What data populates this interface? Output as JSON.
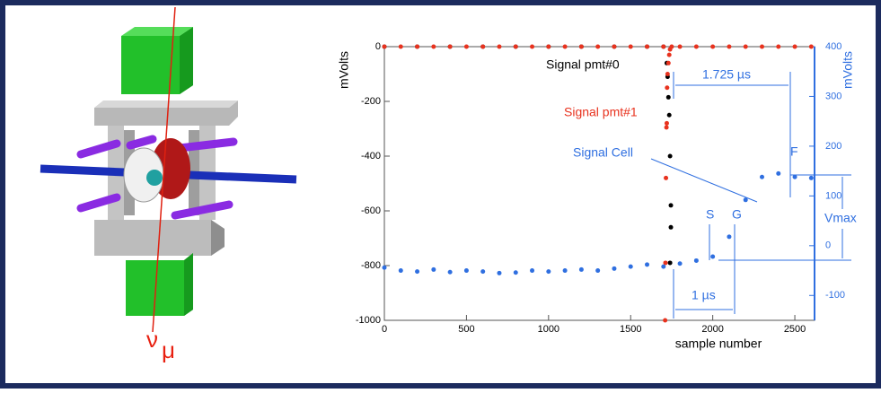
{
  "chart_data": {
    "type": "scatter",
    "xlabel": "sample number",
    "ylabel": "mVolts",
    "y2label": "mVolts",
    "xlim": [
      0,
      2620
    ],
    "xticks": [
      0,
      500,
      1000,
      1500,
      2000,
      2500
    ],
    "ylim": [
      -1000,
      0
    ],
    "yticks": [
      -1000,
      -800,
      -600,
      -400,
      -200,
      0
    ],
    "y2lim": [
      -150,
      400
    ],
    "y2ticks": [
      -100,
      0,
      100,
      200,
      300,
      400
    ],
    "series": [
      {
        "name": "Signal pmt#0",
        "color": "#000000",
        "x": [
          0,
          200,
          400,
          600,
          800,
          1000,
          1200,
          1400,
          1600,
          1700,
          1720,
          1725,
          1730,
          1735,
          1740,
          1745,
          1745,
          1740
        ],
        "values": [
          0,
          0,
          0,
          0,
          0,
          0,
          0,
          0,
          0,
          0,
          -60,
          -110,
          -185,
          -250,
          -400,
          -580,
          -660,
          -790
        ]
      },
      {
        "name": "Signal pmt#1",
        "color": "#e8321e",
        "x": [
          0,
          100,
          200,
          300,
          400,
          500,
          600,
          700,
          800,
          900,
          1000,
          1100,
          1200,
          1300,
          1400,
          1500,
          1600,
          1700,
          1710,
          1712,
          1715,
          1718,
          1720,
          1722,
          1725,
          1730,
          1735,
          1740,
          1750,
          1800,
          1900,
          2000,
          2100,
          2200,
          2300,
          2400,
          2500,
          2600
        ],
        "values": [
          0,
          0,
          0,
          0,
          0,
          0,
          0,
          0,
          0,
          0,
          0,
          0,
          0,
          0,
          0,
          0,
          0,
          0,
          -1000,
          -790,
          -480,
          -295,
          -280,
          -150,
          -100,
          -60,
          -30,
          -10,
          0,
          0,
          0,
          0,
          0,
          0,
          0,
          0,
          0,
          0
        ]
      },
      {
        "name": "Signal Cell",
        "color": "#2f6fe0",
        "axis": "y2",
        "x": [
          0,
          100,
          200,
          300,
          400,
          500,
          600,
          700,
          800,
          900,
          1000,
          1100,
          1200,
          1300,
          1400,
          1500,
          1600,
          1700,
          1800,
          1900,
          2000,
          2100,
          2200,
          2300,
          2400,
          2500,
          2600
        ],
        "values": [
          -44,
          -50,
          -52,
          -48,
          -53,
          -50,
          -52,
          -55,
          -54,
          -50,
          -52,
          -50,
          -48,
          -50,
          -46,
          -42,
          -38,
          -42,
          -36,
          -30,
          -22,
          18,
          92,
          138,
          145,
          138,
          136
        ]
      }
    ],
    "annotations": [
      "Signal pmt#0",
      "Signal pmt#1",
      "Signal Cell",
      "1.725 µs",
      "S",
      "G",
      "F",
      "Vmax",
      "1 µs"
    ],
    "figure_label": {
      "symbol": "ν",
      "subscript": "μ"
    }
  }
}
